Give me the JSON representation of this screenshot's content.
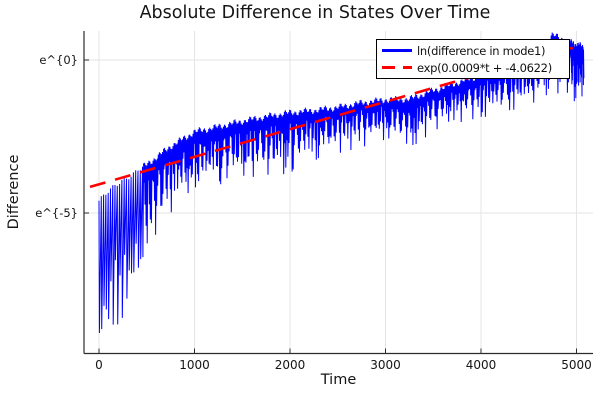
{
  "chart_data": {
    "type": "line",
    "title": "Absolute Difference in States Over Time",
    "xlabel": "Time",
    "ylabel": "Difference",
    "y_scale": "natural-log; tick labels rendered literally as e^{n}",
    "xlim": [
      -160,
      5173
    ],
    "ylim_ln": [
      -9.6,
      0.95
    ],
    "grid": true,
    "legend_position": "top-right",
    "x_ticks": [
      {
        "label": "0",
        "t": 0
      },
      {
        "label": "1000",
        "t": 1000
      },
      {
        "label": "2000",
        "t": 2000
      },
      {
        "label": "3000",
        "t": 3000
      },
      {
        "label": "4000",
        "t": 4000
      },
      {
        "label": "5000",
        "t": 5000
      }
    ],
    "y_ticks": [
      {
        "label": "e^{0}",
        "ln": 0
      },
      {
        "label": "e^{-5}",
        "ln": -5
      }
    ],
    "series": [
      {
        "name": "ln(difference in mode1)",
        "color": "#0000ff",
        "line_style": "solid",
        "description": "Rapidly oscillating |difference| on log scale; downward cusp spikes at sign changes; rising envelope. Envelope sampled from plot below (ln units).",
        "envelope_t": [
          0,
          250,
          500,
          750,
          1000,
          1250,
          1500,
          1750,
          2000,
          2250,
          2500,
          2750,
          3000,
          3250,
          3500,
          3750,
          4000,
          4250,
          4500,
          4750,
          5000,
          5070
        ],
        "envelope_top_ln": [
          -4.6,
          -3.9,
          -3.42,
          -2.82,
          -2.35,
          -2.18,
          -2.0,
          -1.85,
          -1.72,
          -1.65,
          -1.55,
          -1.4,
          -1.3,
          -1.28,
          -1.0,
          -0.75,
          -0.5,
          -0.32,
          -0.08,
          0.82,
          0.5,
          0.45
        ],
        "envelope_bottom_ln": [
          -9.4,
          -8.6,
          -6.1,
          -5.0,
          -4.3,
          -4.1,
          -3.9,
          -3.8,
          -3.7,
          -3.3,
          -3.05,
          -2.85,
          -2.6,
          -3.0,
          -2.3,
          -2.05,
          -1.9,
          -1.7,
          -1.5,
          -1.2,
          -1.4,
          -1.35
        ]
      },
      {
        "name": "exp(0.0009*t + -4.0622)",
        "color": "#ff0000",
        "line_style": "dashed",
        "fit_slope": 0.0009,
        "fit_intercept": -4.0622,
        "t_range": [
          -94,
          4960
        ]
      }
    ],
    "colors": {
      "background": "#ffffff",
      "gridline": "#e3e3e3",
      "spine": "#2b2b2b",
      "text": "#151515"
    }
  }
}
